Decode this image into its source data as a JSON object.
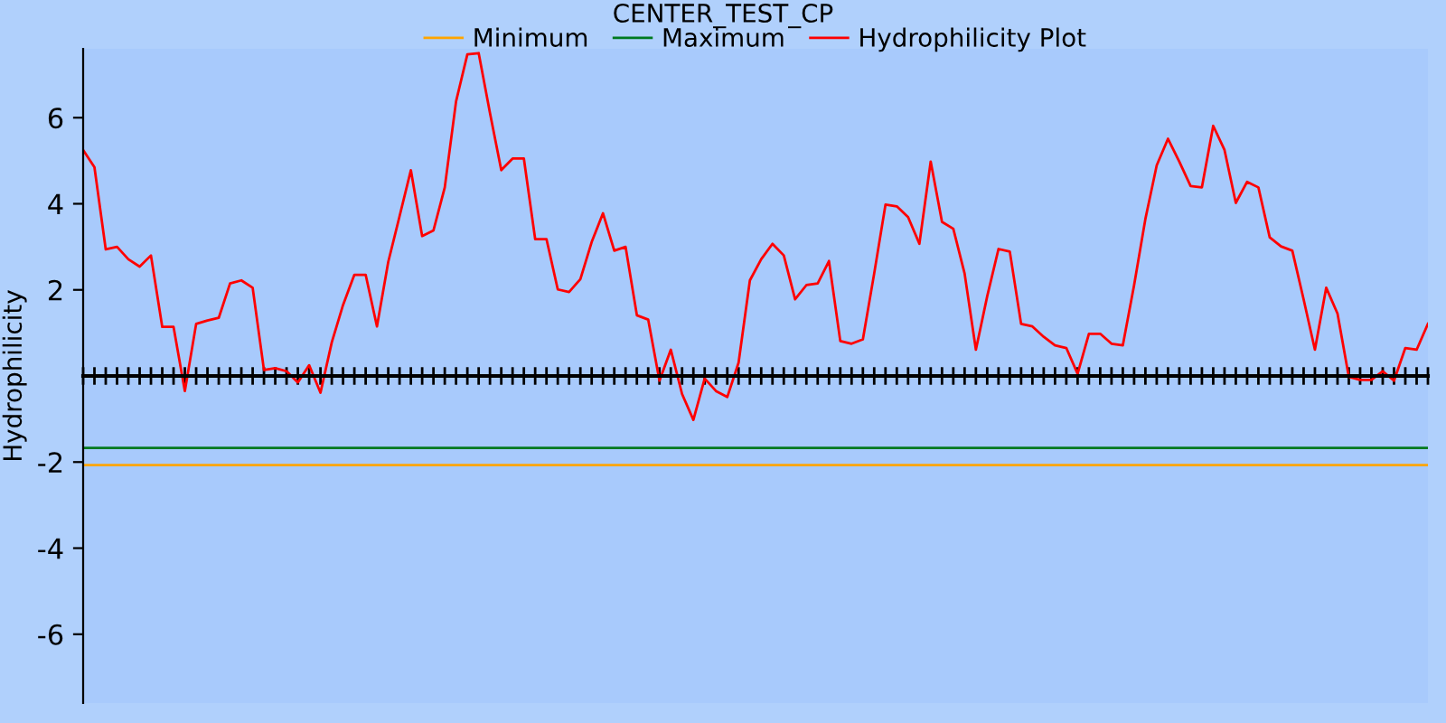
{
  "chart_data": {
    "type": "line",
    "title": "CENTER_TEST_CP",
    "ylabel": "Hydrophilicity",
    "categories": [
      null,
      null,
      null,
      null,
      null,
      null,
      null,
      null,
      null,
      null,
      null,
      null,
      null,
      null,
      null,
      null,
      null,
      null,
      null,
      null,
      null,
      null,
      null,
      null,
      null,
      null,
      null,
      null,
      null,
      null,
      null,
      null,
      null,
      null,
      null,
      null,
      null,
      null,
      null,
      null,
      null,
      null,
      null,
      null,
      null,
      null,
      null,
      null,
      null,
      null,
      null,
      null,
      null,
      null,
      null,
      null,
      null,
      null,
      null,
      null,
      null,
      null,
      null,
      null,
      null,
      null,
      null,
      null,
      null,
      null,
      null,
      null,
      null,
      null,
      null,
      null,
      null,
      null,
      null,
      null,
      null,
      null,
      null,
      null,
      null,
      null,
      null,
      null,
      null,
      null,
      null,
      null,
      null,
      null,
      null,
      null,
      null,
      null,
      null,
      null,
      null,
      null,
      null,
      null,
      null,
      null,
      null,
      null,
      null,
      null,
      null,
      null,
      null,
      null,
      null,
      null,
      null,
      null,
      null,
      null
    ],
    "series": [
      {
        "name": "Minimum",
        "color": "#ffa500",
        "values": [
          -2.07,
          -2.07,
          -2.07,
          -2.07,
          -2.07,
          -2.07,
          -2.07,
          -2.07,
          -2.07,
          -2.07,
          -2.07,
          -2.07,
          -2.07,
          -2.07,
          -2.07,
          -2.07,
          -2.07,
          -2.07,
          -2.07,
          -2.07,
          -2.07,
          -2.07,
          -2.07,
          -2.07,
          -2.07,
          -2.07,
          -2.07,
          -2.07,
          -2.07,
          -2.07,
          -2.07,
          -2.07,
          -2.07,
          -2.07,
          -2.07,
          -2.07,
          -2.07,
          -2.07,
          -2.07,
          -2.07,
          -2.07,
          -2.07,
          -2.07,
          -2.07,
          -2.07,
          -2.07,
          -2.07,
          -2.07,
          -2.07,
          -2.07,
          -2.07,
          -2.07,
          -2.07,
          -2.07,
          -2.07,
          -2.07,
          -2.07,
          -2.07,
          -2.07,
          -2.07,
          -2.07,
          -2.07,
          -2.07,
          -2.07,
          -2.07,
          -2.07,
          -2.07,
          -2.07,
          -2.07,
          -2.07,
          -2.07,
          -2.07,
          -2.07,
          -2.07,
          -2.07,
          -2.07,
          -2.07,
          -2.07,
          -2.07,
          -2.07,
          -2.07,
          -2.07,
          -2.07,
          -2.07,
          -2.07,
          -2.07,
          -2.07,
          -2.07,
          -2.07,
          -2.07,
          -2.07,
          -2.07,
          -2.07,
          -2.07,
          -2.07,
          -2.07,
          -2.07,
          -2.07,
          -2.07,
          -2.07,
          -2.07,
          -2.07,
          -2.07,
          -2.07,
          -2.07,
          -2.07,
          -2.07,
          -2.07,
          -2.07,
          -2.07,
          -2.07,
          -2.07,
          -2.07,
          -2.07,
          -2.07,
          -2.07,
          -2.07,
          -2.07,
          -2.07,
          -2.07
        ]
      },
      {
        "name": "Maximum",
        "color": "#007a1f",
        "values": [
          -1.67,
          -1.67,
          -1.67,
          -1.67,
          -1.67,
          -1.67,
          -1.67,
          -1.67,
          -1.67,
          -1.67,
          -1.67,
          -1.67,
          -1.67,
          -1.67,
          -1.67,
          -1.67,
          -1.67,
          -1.67,
          -1.67,
          -1.67,
          -1.67,
          -1.67,
          -1.67,
          -1.67,
          -1.67,
          -1.67,
          -1.67,
          -1.67,
          -1.67,
          -1.67,
          -1.67,
          -1.67,
          -1.67,
          -1.67,
          -1.67,
          -1.67,
          -1.67,
          -1.67,
          -1.67,
          -1.67,
          -1.67,
          -1.67,
          -1.67,
          -1.67,
          -1.67,
          -1.67,
          -1.67,
          -1.67,
          -1.67,
          -1.67,
          -1.67,
          -1.67,
          -1.67,
          -1.67,
          -1.67,
          -1.67,
          -1.67,
          -1.67,
          -1.67,
          -1.67,
          -1.67,
          -1.67,
          -1.67,
          -1.67,
          -1.67,
          -1.67,
          -1.67,
          -1.67,
          -1.67,
          -1.67,
          -1.67,
          -1.67,
          -1.67,
          -1.67,
          -1.67,
          -1.67,
          -1.67,
          -1.67,
          -1.67,
          -1.67,
          -1.67,
          -1.67,
          -1.67,
          -1.67,
          -1.67,
          -1.67,
          -1.67,
          -1.67,
          -1.67,
          -1.67,
          -1.67,
          -1.67,
          -1.67,
          -1.67,
          -1.67,
          -1.67,
          -1.67,
          -1.67,
          -1.67,
          -1.67,
          -1.67,
          -1.67,
          -1.67,
          -1.67,
          -1.67,
          -1.67,
          -1.67,
          -1.67,
          -1.67,
          -1.67,
          -1.67,
          -1.67,
          -1.67,
          -1.67,
          -1.67,
          -1.67,
          -1.67,
          -1.67,
          -1.67,
          -1.67
        ]
      },
      {
        "name": "Hydrophilicity Plot",
        "color": "#ff0000",
        "values": [
          5.25,
          4.85,
          2.94,
          3.0,
          2.71,
          2.54,
          2.8,
          1.14,
          1.14,
          -0.35,
          1.21,
          1.29,
          1.35,
          2.15,
          2.22,
          2.05,
          0.14,
          0.18,
          0.11,
          -0.15,
          0.25,
          -0.39,
          0.78,
          1.65,
          2.35,
          2.35,
          1.15,
          2.65,
          3.71,
          4.78,
          3.25,
          3.38,
          4.38,
          6.38,
          7.47,
          7.5,
          6.11,
          4.78,
          5.05,
          5.05,
          3.18,
          3.18,
          2.01,
          1.95,
          2.25,
          3.11,
          3.78,
          2.91,
          3.0,
          1.41,
          1.31,
          -0.11,
          0.61,
          -0.42,
          -1.02,
          -0.06,
          -0.35,
          -0.49,
          0.31,
          2.22,
          2.71,
          3.07,
          2.8,
          1.78,
          2.11,
          2.15,
          2.67,
          0.81,
          0.75,
          0.85,
          2.38,
          3.98,
          3.94,
          3.69,
          3.07,
          4.98,
          3.58,
          3.42,
          2.38,
          0.61,
          1.85,
          2.95,
          2.89,
          1.21,
          1.15,
          0.91,
          0.71,
          0.65,
          0.05,
          0.98,
          0.98,
          0.75,
          0.71,
          2.11,
          3.65,
          4.89,
          5.51,
          4.98,
          4.41,
          4.38,
          5.81,
          5.25,
          4.02,
          4.51,
          4.38,
          3.22,
          3.01,
          2.91,
          1.78,
          0.61,
          2.05,
          1.45,
          -0.02,
          -0.09,
          -0.09,
          0.11,
          -0.11,
          0.65,
          0.61,
          1.21
        ]
      }
    ],
    "ylim": [
      -7.6,
      7.6
    ],
    "yticks": [
      -6,
      -4,
      -2,
      2,
      4,
      6
    ],
    "tick_labels": "y",
    "grid": false,
    "legend": "top",
    "marker": "none",
    "line_style": "solid"
  }
}
